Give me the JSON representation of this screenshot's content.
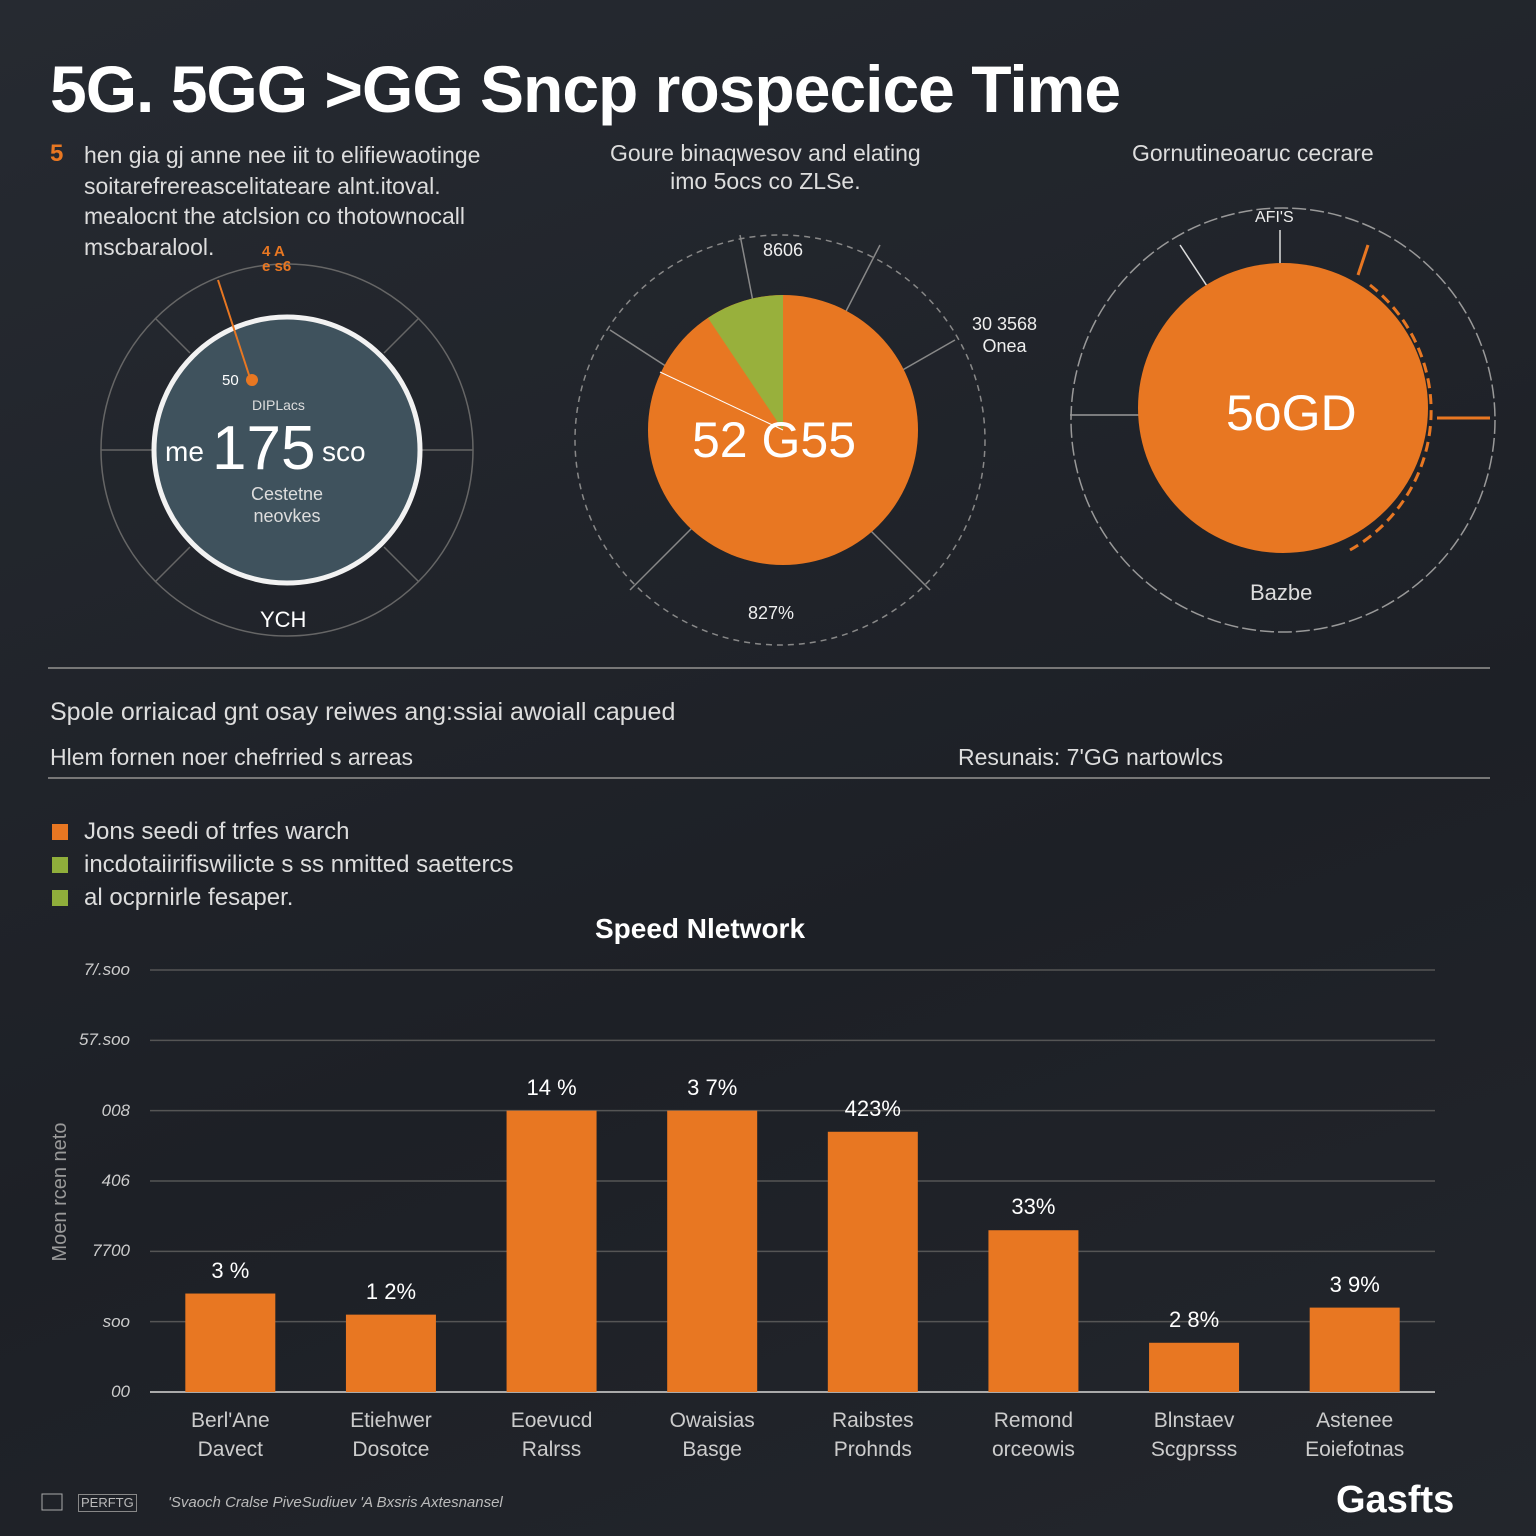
{
  "header": {
    "title": "5G. 5GG >GG Sncp rospecice Time"
  },
  "intro": {
    "marker": "5",
    "text": "hen gia gj anne nee iit to elifiewaotinge\nsoitarefrereascelitateare alnt.itoval.\nmealocnt the atclsion co thotownocall\nmscbaralool."
  },
  "panels": [
    {
      "top": "4 A\ne s6",
      "small": "50",
      "sub": "DIPLacs",
      "prefix": "me",
      "value": "175",
      "suffix": "sco",
      "desc": "Cestetne\nneovkes",
      "bottom": "YCH"
    },
    {
      "caption": "Goure binaqwesov and elating\nimo 5ocs co ZLSe.",
      "top": "8606",
      "side": "30 3568\nOnea",
      "center": "52 G55",
      "bottom": "827%"
    },
    {
      "caption": "Gornutineoaruc cecrare",
      "top": "AFI'S",
      "center": "5oGD",
      "bottom": "Bazbe"
    }
  ],
  "section": {
    "line1": "Spole orriaicad gnt osay reiwes ang:ssiai awoiall capued",
    "line2": "Hlem fornen noer chefrried s arreas",
    "right": "Resunais: 7'GG nartowlcs"
  },
  "legend": [
    {
      "label": "Jons seedi of trfes warch",
      "color": "#e87722"
    },
    {
      "label": "incdotaiirifiswilicte s ss nmitted saettercs",
      "color": "#8fae3b"
    },
    {
      "label": "al ocprnirle fesaper.",
      "color": "#8fae3b"
    }
  ],
  "chart_data": {
    "type": "bar",
    "title": "Speed Nletwork",
    "ylabel": "Moen rcen neto",
    "categories": [
      "Berl'Ane\nDavect",
      "Etiehwer\nDosotce",
      "Eoevucd\nRalrss",
      "Owaisias\nBasge",
      "Raibstes\nProhnds",
      "Remond\norceowis",
      "Blnstaev\nScgprsss",
      "Astenee\nEoiefotnas"
    ],
    "values": [
      1.4,
      1.1,
      4.0,
      4.0,
      3.7,
      2.3,
      0.7,
      1.2
    ],
    "annotations": [
      "3 %",
      "1 2%",
      "14 %",
      "3 7%",
      "423%",
      "33%",
      "2 8%",
      "3 9%"
    ],
    "color": "#e87722",
    "ylim": [
      0,
      6
    ],
    "yticks": [
      {
        "value": 0,
        "label": "00"
      },
      {
        "value": 1,
        "label": "soo"
      },
      {
        "value": 2,
        "label": "7700"
      },
      {
        "value": 3,
        "label": "406"
      },
      {
        "value": 4,
        "label": "008"
      },
      {
        "value": 5,
        "label": "57.soo"
      },
      {
        "value": 6,
        "label": "7/.soo"
      }
    ],
    "grid": true
  },
  "footer": {
    "left": "PERFTG",
    "source": "'Svaoch Cralse PiveSudiuev 'A Bxsris Axtesnansel",
    "brand": "Gasfts"
  }
}
